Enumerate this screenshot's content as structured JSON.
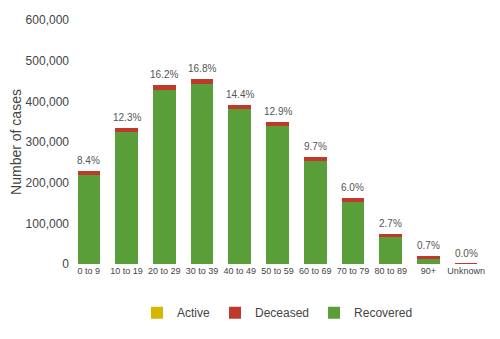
{
  "chart_data": {
    "type": "bar",
    "stacked": true,
    "categories": [
      "0 to 9",
      "10 to 19",
      "20 to 29",
      "30 to 39",
      "40 to 49",
      "50 to 59",
      "60 to 69",
      "70 to 79",
      "80 to 89",
      "90+",
      "Unknown"
    ],
    "series": [
      {
        "name": "Recovered",
        "color": "#5a9e3a",
        "values": [
          220000,
          325000,
          428000,
          443000,
          380000,
          340000,
          253000,
          152000,
          67000,
          13500,
          400
        ]
      },
      {
        "name": "Deceased",
        "color": "#c0392b",
        "values": [
          8000,
          9000,
          12000,
          13000,
          11000,
          10000,
          10000,
          11000,
          6000,
          5500,
          100
        ]
      },
      {
        "name": "Active",
        "color": "#d4b800",
        "values": [
          0,
          0,
          0,
          0,
          0,
          0,
          0,
          0,
          0,
          0,
          0
        ]
      }
    ],
    "annotations": [
      {
        "x": "0 to 9",
        "text": "8.4%"
      },
      {
        "x": "10 to 19",
        "text": "12.3%"
      },
      {
        "x": "20 to 29",
        "text": "16.2%"
      },
      {
        "x": "30 to 39",
        "text": "16.8%"
      },
      {
        "x": "40 to 49",
        "text": "14.4%"
      },
      {
        "x": "50 to 59",
        "text": "12.9%"
      },
      {
        "x": "60 to 69",
        "text": "9.7%"
      },
      {
        "x": "70 to 79",
        "text": "6.0%"
      },
      {
        "x": "80 to 89",
        "text": "2.7%"
      },
      {
        "x": "90+",
        "text": "0.7%"
      },
      {
        "x": "Unknown",
        "text": "0.0%"
      }
    ],
    "ylabel": "Number of cases",
    "ylim": [
      0,
      600000
    ],
    "yticks": [
      0,
      {
        "value": 100000,
        "label": "100,000"
      },
      {
        "value": 200000,
        "label": "200,000"
      },
      {
        "value": 300000,
        "label": "300,000"
      },
      {
        "value": 400000,
        "label": "400,000"
      },
      {
        "value": 500000,
        "label": "500,000"
      },
      {
        "value": 600000,
        "label": "600,000"
      }
    ],
    "grid": false,
    "legend": "bottom"
  }
}
